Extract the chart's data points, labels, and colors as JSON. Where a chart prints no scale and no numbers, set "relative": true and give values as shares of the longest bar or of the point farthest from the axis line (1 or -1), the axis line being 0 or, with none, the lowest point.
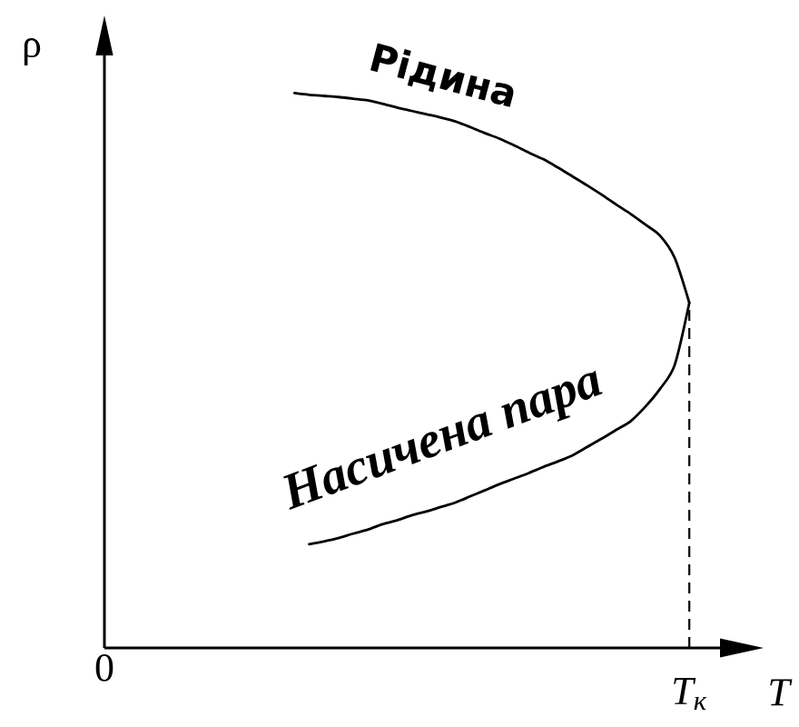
{
  "chart_data": {
    "type": "line",
    "relative": true,
    "xlabel": "T",
    "ylabel": "ρ",
    "categories": [
      "0",
      null,
      null,
      null,
      null,
      null,
      null,
      null,
      null,
      null,
      null,
      null,
      null,
      null,
      null,
      null,
      null,
      null,
      null,
      null,
      null,
      null,
      null,
      null,
      null,
      null,
      null,
      null,
      null,
      null,
      null,
      null,
      null,
      null,
      null,
      null,
      null,
      null,
      null,
      null,
      "T$_{к}$"
    ],
    "marker": "none",
    "line_style": "solid",
    "series": [
      {
        "name": "Рідина",
        "color": "#000000",
        "values": [
          null,
          null,
          null,
          null,
          null,
          null,
          null,
          null,
          null,
          null,
          null,
          null,
          null,
          1.0,
          0.997,
          0.995,
          0.993,
          0.99,
          0.987,
          0.981,
          0.974,
          0.968,
          0.962,
          0.956,
          0.949,
          0.939,
          0.928,
          0.918,
          0.906,
          0.893,
          0.881,
          0.866,
          0.85,
          0.834,
          0.817,
          0.799,
          0.782,
          0.763,
          0.743,
          0.703,
          0.622
        ]
      },
      {
        "name": "Насичена пара",
        "color": "#000000",
        "values": [
          null,
          null,
          null,
          null,
          null,
          null,
          null,
          null,
          null,
          null,
          null,
          null,
          null,
          null,
          0.187,
          0.192,
          0.198,
          0.206,
          0.213,
          0.223,
          0.23,
          0.239,
          0.246,
          0.254,
          0.262,
          0.273,
          0.284,
          0.295,
          0.305,
          0.315,
          0.326,
          0.336,
          0.347,
          0.362,
          0.377,
          0.393,
          0.409,
          0.435,
          0.467,
          0.51,
          0.622
        ]
      }
    ],
    "ref_lines": [
      {
        "axis": "x",
        "value": "T$_{к}$",
        "line_style": "dashed",
        "color": "#000000"
      }
    ]
  }
}
